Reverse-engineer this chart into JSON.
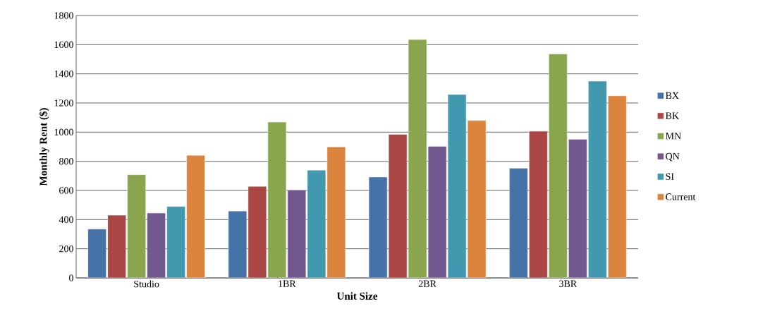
{
  "chart_data": {
    "type": "bar",
    "xlabel": "Unit Size",
    "ylabel": "Monthly Rent ($)",
    "categories": [
      "Studio",
      "1BR",
      "2BR",
      "3BR"
    ],
    "series": [
      {
        "name": "BX",
        "color": "#4572a7",
        "values": [
          335,
          459,
          692,
          752
        ]
      },
      {
        "name": "BK",
        "color": "#aa4643",
        "values": [
          430,
          628,
          985,
          1006
        ]
      },
      {
        "name": "MN",
        "color": "#89a54e",
        "values": [
          708,
          1069,
          1635,
          1536
        ]
      },
      {
        "name": "QN",
        "color": "#71588f",
        "values": [
          445,
          603,
          902,
          951
        ]
      },
      {
        "name": "SI",
        "color": "#4198af",
        "values": [
          490,
          739,
          1258,
          1350
        ]
      },
      {
        "name": "Current",
        "color": "#db843d",
        "values": [
          841,
          899,
          1080,
          1249
        ]
      }
    ],
    "ylim": [
      0,
      1800
    ],
    "yticks": [
      0,
      200,
      400,
      600,
      800,
      1000,
      1200,
      1400,
      1600,
      1800
    ],
    "grid": "y",
    "legend": "right"
  }
}
